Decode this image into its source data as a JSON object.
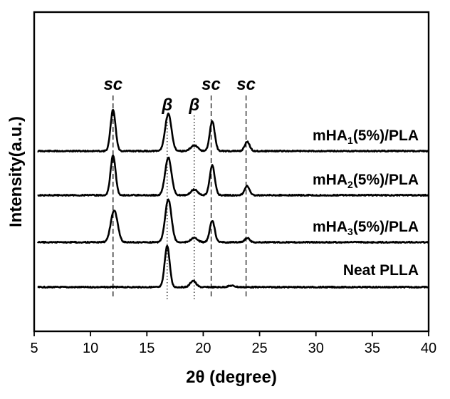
{
  "chart_data": {
    "type": "line",
    "xlabel": "2θ (degree)",
    "ylabel": "Intensity(a.u.)",
    "xlim": [
      5,
      40
    ],
    "x_ticks": [
      5,
      10,
      15,
      20,
      25,
      30,
      35,
      40
    ],
    "y_ticks_shown": false,
    "grid": false,
    "stacked_offset": true,
    "series": [
      {
        "name": "mHA1(5%)/PLA",
        "label_base": "mHA",
        "label_sub": "1",
        "label_rest": "(5%)/PLA",
        "offset": 3,
        "peaks": [
          {
            "x": 12.0,
            "height": 0.58,
            "width": 0.22
          },
          {
            "x": 16.9,
            "height": 0.52,
            "width": 0.28
          },
          {
            "x": 19.2,
            "height": 0.08,
            "width": 0.3
          },
          {
            "x": 20.8,
            "height": 0.42,
            "width": 0.22
          },
          {
            "x": 23.9,
            "height": 0.13,
            "width": 0.22
          }
        ]
      },
      {
        "name": "mHA2(5%)/PLA",
        "label_base": "mHA",
        "label_sub": "2",
        "label_rest": "(5%)/PLA",
        "offset": 2,
        "peaks": [
          {
            "x": 12.0,
            "height": 0.56,
            "width": 0.22
          },
          {
            "x": 16.9,
            "height": 0.53,
            "width": 0.28
          },
          {
            "x": 19.2,
            "height": 0.08,
            "width": 0.3
          },
          {
            "x": 20.8,
            "height": 0.42,
            "width": 0.22
          },
          {
            "x": 23.9,
            "height": 0.13,
            "width": 0.22
          }
        ]
      },
      {
        "name": "mHA3(5%)/PLA",
        "label_base": "mHA",
        "label_sub": "3",
        "label_rest": "(5%)/PLA",
        "offset": 1,
        "peaks": [
          {
            "x": 12.1,
            "height": 0.45,
            "width": 0.3
          },
          {
            "x": 16.9,
            "height": 0.6,
            "width": 0.28
          },
          {
            "x": 19.2,
            "height": 0.06,
            "width": 0.3
          },
          {
            "x": 20.8,
            "height": 0.3,
            "width": 0.22
          },
          {
            "x": 23.9,
            "height": 0.06,
            "width": 0.22
          }
        ]
      },
      {
        "name": "Neat PLLA",
        "label_base": "Neat PLLA",
        "label_sub": "",
        "label_rest": "",
        "offset": 0,
        "peaks": [
          {
            "x": 16.8,
            "height": 0.58,
            "width": 0.22
          },
          {
            "x": 19.1,
            "height": 0.09,
            "width": 0.25
          },
          {
            "x": 22.5,
            "height": 0.02,
            "width": 0.3
          }
        ]
      }
    ],
    "annotations": [
      {
        "text": "sc",
        "x": 12.0,
        "line": "dashed"
      },
      {
        "text": "β",
        "x": 16.8,
        "line": "dotted"
      },
      {
        "text": "β",
        "x": 19.2,
        "line": "dotted"
      },
      {
        "text": "sc",
        "x": 20.7,
        "line": "dashed"
      },
      {
        "text": "sc",
        "x": 23.8,
        "line": "dashed"
      }
    ]
  }
}
